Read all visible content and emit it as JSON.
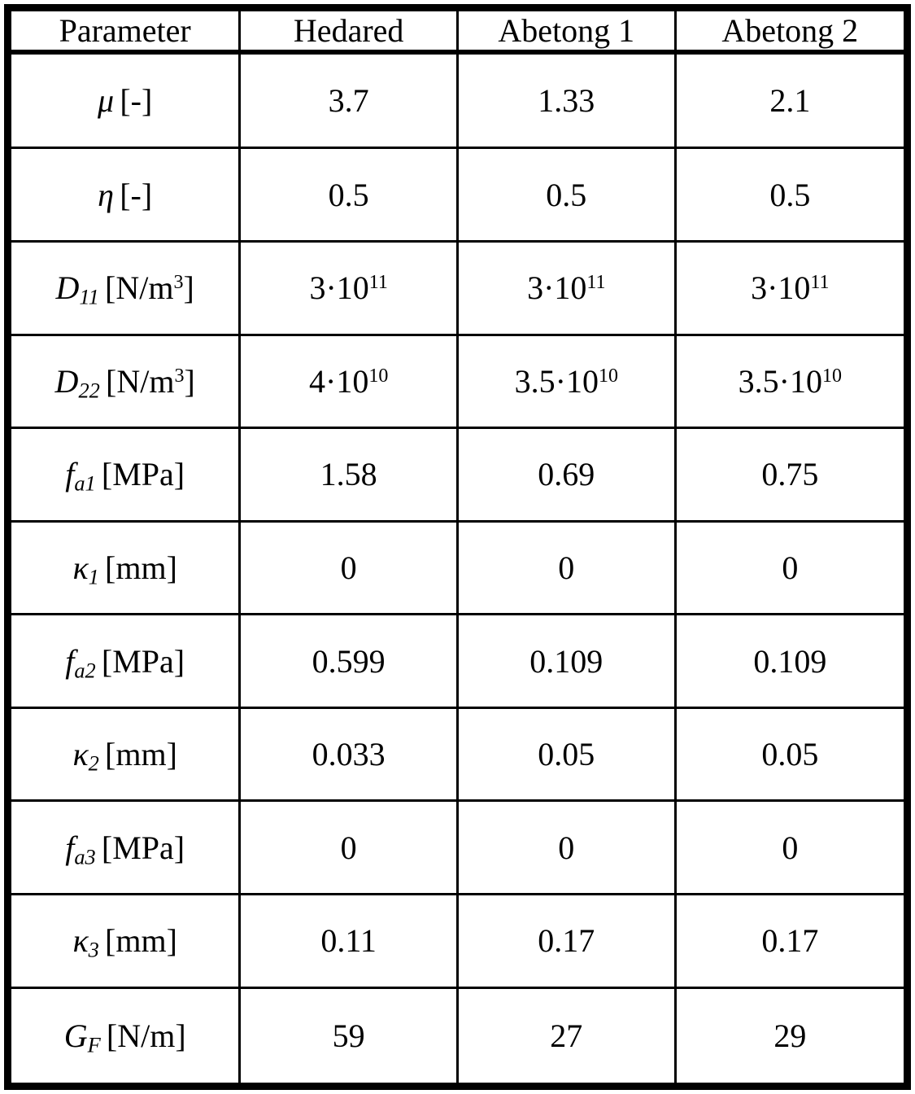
{
  "table": {
    "header": [
      "Parameter",
      "Hedared",
      "Abetong 1",
      "Abetong 2"
    ],
    "rows": [
      {
        "param": {
          "symbol": "μ",
          "sub": "",
          "unit_pre": "[-]",
          "unit_sup": "",
          "unit_post": ""
        },
        "values": [
          {
            "base": "3.7",
            "sup": ""
          },
          {
            "base": "1.33",
            "sup": ""
          },
          {
            "base": "2.1",
            "sup": ""
          }
        ]
      },
      {
        "param": {
          "symbol": "η",
          "sub": "",
          "unit_pre": "[-]",
          "unit_sup": "",
          "unit_post": ""
        },
        "values": [
          {
            "base": "0.5",
            "sup": ""
          },
          {
            "base": "0.5",
            "sup": ""
          },
          {
            "base": "0.5",
            "sup": ""
          }
        ]
      },
      {
        "param": {
          "symbol": "D",
          "sub": "11",
          "unit_pre": "[N/m",
          "unit_sup": "3",
          "unit_post": "]"
        },
        "values": [
          {
            "base": "3·10",
            "sup": "11"
          },
          {
            "base": "3·10",
            "sup": "11"
          },
          {
            "base": "3·10",
            "sup": "11"
          }
        ]
      },
      {
        "param": {
          "symbol": "D",
          "sub": "22",
          "unit_pre": "[N/m",
          "unit_sup": "3",
          "unit_post": "]"
        },
        "values": [
          {
            "base": "4·10",
            "sup": "10"
          },
          {
            "base": "3.5·10",
            "sup": "10"
          },
          {
            "base": "3.5·10",
            "sup": "10"
          }
        ]
      },
      {
        "param": {
          "symbol": "f",
          "sub": "a1",
          "unit_pre": "[MPa]",
          "unit_sup": "",
          "unit_post": ""
        },
        "values": [
          {
            "base": "1.58",
            "sup": ""
          },
          {
            "base": "0.69",
            "sup": ""
          },
          {
            "base": "0.75",
            "sup": ""
          }
        ]
      },
      {
        "param": {
          "symbol": "κ",
          "sub": "1",
          "unit_pre": "[mm]",
          "unit_sup": "",
          "unit_post": ""
        },
        "values": [
          {
            "base": "0",
            "sup": ""
          },
          {
            "base": "0",
            "sup": ""
          },
          {
            "base": "0",
            "sup": ""
          }
        ]
      },
      {
        "param": {
          "symbol": "f",
          "sub": "a2",
          "unit_pre": "[MPa]",
          "unit_sup": "",
          "unit_post": ""
        },
        "values": [
          {
            "base": "0.599",
            "sup": ""
          },
          {
            "base": "0.109",
            "sup": ""
          },
          {
            "base": "0.109",
            "sup": ""
          }
        ]
      },
      {
        "param": {
          "symbol": "κ",
          "sub": "2",
          "unit_pre": "[mm]",
          "unit_sup": "",
          "unit_post": ""
        },
        "values": [
          {
            "base": "0.033",
            "sup": ""
          },
          {
            "base": "0.05",
            "sup": ""
          },
          {
            "base": "0.05",
            "sup": ""
          }
        ]
      },
      {
        "param": {
          "symbol": "f",
          "sub": "a3",
          "unit_pre": "[MPa]",
          "unit_sup": "",
          "unit_post": ""
        },
        "values": [
          {
            "base": "0",
            "sup": ""
          },
          {
            "base": "0",
            "sup": ""
          },
          {
            "base": "0",
            "sup": ""
          }
        ]
      },
      {
        "param": {
          "symbol": "κ",
          "sub": "3",
          "unit_pre": "[mm]",
          "unit_sup": "",
          "unit_post": ""
        },
        "values": [
          {
            "base": "0.11",
            "sup": ""
          },
          {
            "base": "0.17",
            "sup": ""
          },
          {
            "base": "0.17",
            "sup": ""
          }
        ]
      },
      {
        "param": {
          "symbol": "G",
          "sub": "F",
          "unit_pre": "[N/m]",
          "unit_sup": "",
          "unit_post": ""
        },
        "values": [
          {
            "base": "59",
            "sup": ""
          },
          {
            "base": "27",
            "sup": ""
          },
          {
            "base": "29",
            "sup": ""
          }
        ]
      }
    ]
  }
}
